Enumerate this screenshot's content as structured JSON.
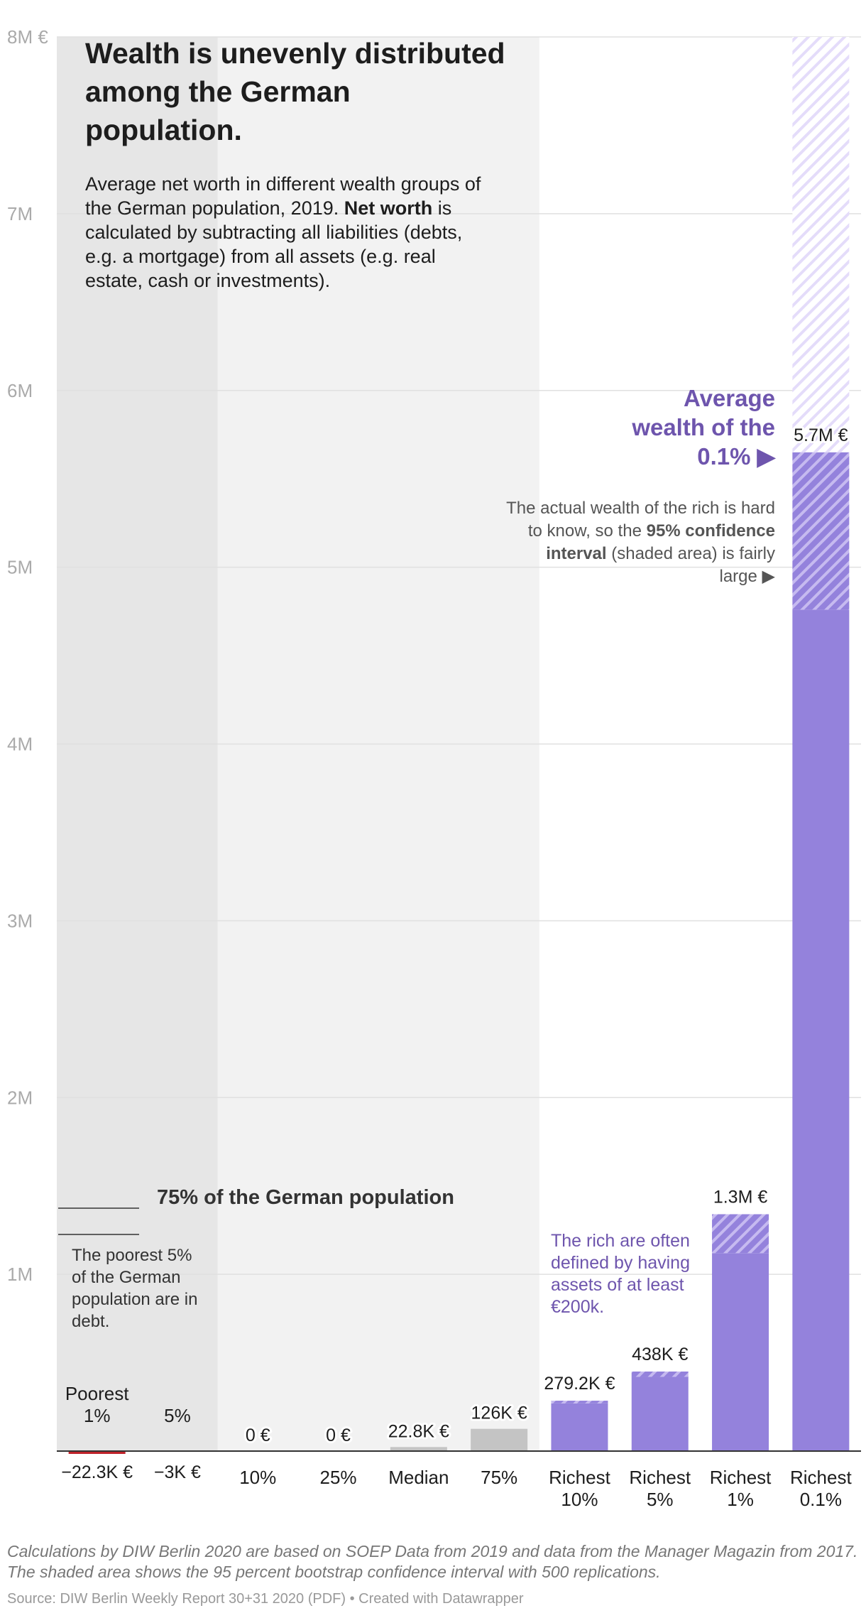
{
  "header": {
    "title": "Wealth is unevenly distributed among the German population.",
    "subtitle_part1": "Average net worth in different wealth groups of the German population, 2019. ",
    "subtitle_bold": "Net worth",
    "subtitle_part2": " is calculated by subtracting all liabilities (debts, e.g. a mortgage) from all assets (e.g. real estate, cash or investments)."
  },
  "annotations": {
    "avg_wealth_line1": "Average",
    "avg_wealth_line2": "wealth of the",
    "avg_wealth_line3": "0.1% ▶",
    "ci_part1": "The actual wealth of the rich is hard to know, so the ",
    "ci_bold": "95% confidence interval",
    "ci_part2": " (shaded area) is fairly large ▶",
    "rich_defined": "The rich are often defined by having assets of at least €200k.",
    "poorest_debt": "The poorest 5% of the German population are in debt.",
    "population_75": "75% of the German population"
  },
  "footer": {
    "notes": "Calculations by DIW Berlin 2020 are based on SOEP Data from 2019 and data from the Manager Magazin from 2017. The shaded area shows the 95 percent bootstrap confidence interval with 500 replications.",
    "source": "Source: DIW Berlin Weekly Report 30+31 2020 (PDF) • Created with Datawrapper"
  },
  "colors": {
    "purple": "#9482dc",
    "purple_dark": "#6e55ad",
    "gray_bar": "#c4c4c4",
    "red": "#c0232b",
    "band_dark": "#e6e6e6",
    "band_light": "#f2f2f2"
  },
  "chart_data": {
    "type": "bar",
    "title": "Wealth is unevenly distributed among the German population.",
    "ylim": [
      0,
      8000000
    ],
    "y_ticks": [
      {
        "value": 8000000,
        "label": "8M €"
      },
      {
        "value": 7000000,
        "label": "7M"
      },
      {
        "value": 6000000,
        "label": "6M"
      },
      {
        "value": 5000000,
        "label": "5M"
      },
      {
        "value": 4000000,
        "label": "4M"
      },
      {
        "value": 3000000,
        "label": "3M"
      },
      {
        "value": 2000000,
        "label": "2M"
      },
      {
        "value": 1000000,
        "label": "1M"
      }
    ],
    "grid": true,
    "bars": [
      {
        "category": "Poorest 1%",
        "value": -22300,
        "label": "−22.3K €",
        "group": "debt"
      },
      {
        "category": "5%",
        "value": -3000,
        "label": "−3K €",
        "group": "debt"
      },
      {
        "category": "10%",
        "value": 0,
        "label": "0 €",
        "group": "bottom"
      },
      {
        "category": "25%",
        "value": 0,
        "label": "0 €",
        "group": "bottom"
      },
      {
        "category": "Median",
        "value": 22800,
        "label": "22.8K €",
        "group": "bottom"
      },
      {
        "category": "75%",
        "value": 126000,
        "label": "126K €",
        "group": "bottom"
      },
      {
        "category": "Richest 10%",
        "value": 279200,
        "label": "279.2K €",
        "group": "rich",
        "ci": [
          270000,
          285000
        ]
      },
      {
        "category": "Richest 5%",
        "value": 438000,
        "label": "438K €",
        "group": "rich",
        "ci": [
          420000,
          450000
        ]
      },
      {
        "category": "Richest 1%",
        "value": 1300000,
        "label": "1.3M €",
        "group": "rich",
        "ci": [
          1120000,
          1340000
        ]
      },
      {
        "category": "Richest 0.1%",
        "value": 5700000,
        "label": "5.7M €",
        "group": "rich",
        "ci": [
          4760000,
          5650000
        ],
        "ci_upper_faint": 8000000
      }
    ]
  }
}
